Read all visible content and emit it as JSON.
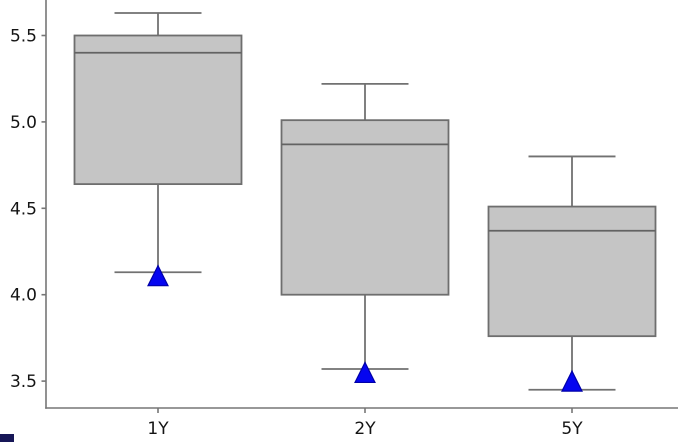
{
  "figure": {
    "background": "#ffffff",
    "corner_artifact_color": "#171757"
  },
  "chart_data": {
    "type": "boxplot",
    "title": "",
    "xlabel": "",
    "ylabel": "",
    "grid": false,
    "legend": null,
    "categories": [
      "1Y",
      "2Y",
      "5Y"
    ],
    "series": [
      {
        "label": "1Y",
        "whislo": 4.13,
        "q1": 4.64,
        "med": 5.4,
        "q3": 5.5,
        "whishi": 5.63,
        "marker_value": 4.11
      },
      {
        "label": "2Y",
        "whislo": 3.57,
        "q1": 4.0,
        "med": 4.87,
        "q3": 5.01,
        "whishi": 5.22,
        "marker_value": 3.55
      },
      {
        "label": "5Y",
        "whislo": 3.45,
        "q1": 3.76,
        "med": 4.37,
        "q3": 4.51,
        "whishi": 4.8,
        "marker_value": 3.5
      }
    ],
    "marker_shape": "triangle-up",
    "yticks": [
      5.5,
      5.0,
      4.5,
      4.0,
      3.5
    ],
    "ytick_labels": [
      "5.5",
      "5.0",
      "4.5",
      "4.0",
      "3.5"
    ],
    "ylim": [
      3.34,
      5.71
    ],
    "colors": {
      "box_fill": "#c5c5c5",
      "box_edge": "#6e6e6e",
      "median": "#636363",
      "whisker": "#717171",
      "cap": "#717171",
      "marker_fill": "#0505f0",
      "marker_edge": "#0000a8",
      "spine": "#767676",
      "tick": "#767676",
      "tick_label": "#141414"
    }
  }
}
